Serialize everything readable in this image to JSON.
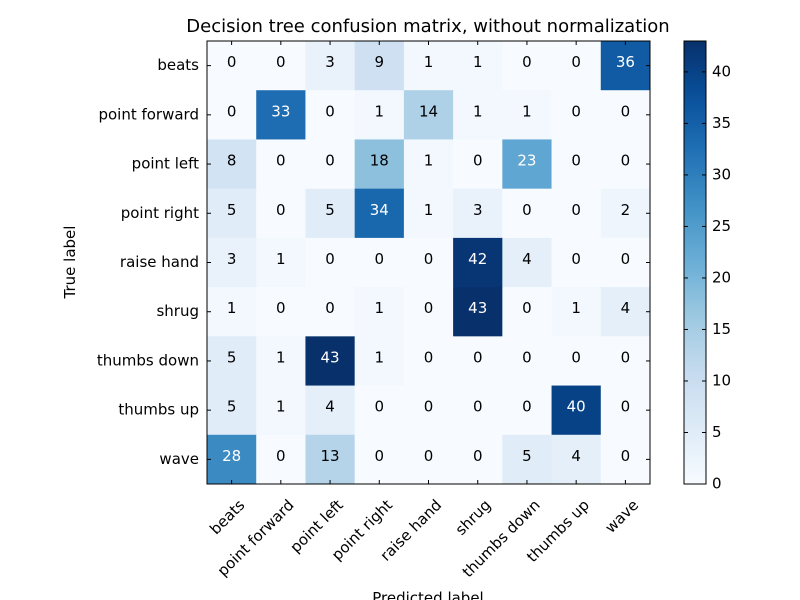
{
  "chart_data": {
    "type": "heatmap",
    "title": "Decision tree confusion matrix, without normalization",
    "xlabel": "Predicted label",
    "ylabel": "True label",
    "row_labels": [
      "beats",
      "point forward",
      "point left",
      "point right",
      "raise hand",
      "shrug",
      "thumbs down",
      "thumbs up",
      "wave"
    ],
    "col_labels": [
      "beats",
      "point forward",
      "point left",
      "point right",
      "raise hand",
      "shrug",
      "thumbs down",
      "thumbs up",
      "wave"
    ],
    "values": [
      [
        0,
        0,
        3,
        9,
        1,
        1,
        0,
        0,
        36
      ],
      [
        0,
        33,
        0,
        1,
        14,
        1,
        1,
        0,
        0
      ],
      [
        8,
        0,
        0,
        18,
        1,
        0,
        23,
        0,
        0
      ],
      [
        5,
        0,
        5,
        34,
        1,
        3,
        0,
        0,
        2
      ],
      [
        3,
        1,
        0,
        0,
        0,
        42,
        4,
        0,
        0
      ],
      [
        1,
        0,
        0,
        1,
        0,
        43,
        0,
        1,
        4
      ],
      [
        5,
        1,
        43,
        1,
        0,
        0,
        0,
        0,
        0
      ],
      [
        5,
        1,
        4,
        0,
        0,
        0,
        0,
        40,
        0
      ],
      [
        28,
        0,
        13,
        0,
        0,
        0,
        5,
        4,
        0
      ]
    ],
    "colormap": "Blues",
    "vmin": 0,
    "vmax": 43,
    "colorbar_ticks": [
      0,
      5,
      10,
      15,
      20,
      25,
      30,
      35,
      40
    ],
    "grid": false
  }
}
